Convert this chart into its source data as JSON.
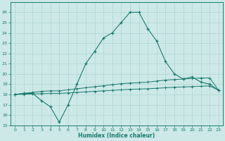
{
  "xlabel": "Humidex (Indice chaleur)",
  "x_values": [
    0,
    1,
    2,
    3,
    4,
    5,
    6,
    7,
    8,
    9,
    10,
    11,
    12,
    13,
    14,
    15,
    16,
    17,
    18,
    19,
    20,
    21,
    22,
    23
  ],
  "line1": [
    18.0,
    18.1,
    18.1,
    17.4,
    16.8,
    15.3,
    17.0,
    19.0,
    21.0,
    22.2,
    23.5,
    24.0,
    25.0,
    26.0,
    26.0,
    24.4,
    23.2,
    21.2,
    20.0,
    19.5,
    19.7,
    19.2,
    19.0,
    18.4
  ],
  "line2": [
    18.0,
    18.1,
    18.2,
    18.3,
    18.35,
    18.35,
    18.45,
    18.55,
    18.65,
    18.75,
    18.85,
    18.95,
    19.05,
    19.1,
    19.15,
    19.2,
    19.3,
    19.4,
    19.45,
    19.5,
    19.55,
    19.6,
    19.6,
    18.4
  ],
  "line3": [
    18.0,
    18.02,
    18.05,
    18.08,
    18.1,
    18.1,
    18.15,
    18.2,
    18.25,
    18.3,
    18.35,
    18.4,
    18.45,
    18.5,
    18.52,
    18.55,
    18.6,
    18.65,
    18.7,
    18.73,
    18.76,
    18.8,
    18.83,
    18.4
  ],
  "line_color": "#1a7a6e",
  "bg_color": "#cce9e7",
  "grid_color": "#afd4d1",
  "ylim": [
    15,
    27
  ],
  "xlim": [
    -0.5,
    23.5
  ],
  "yticks": [
    15,
    16,
    17,
    18,
    19,
    20,
    21,
    22,
    23,
    24,
    25,
    26
  ],
  "xticks": [
    0,
    1,
    2,
    3,
    4,
    5,
    6,
    7,
    8,
    9,
    10,
    11,
    12,
    13,
    14,
    15,
    16,
    17,
    18,
    19,
    20,
    21,
    22,
    23
  ]
}
